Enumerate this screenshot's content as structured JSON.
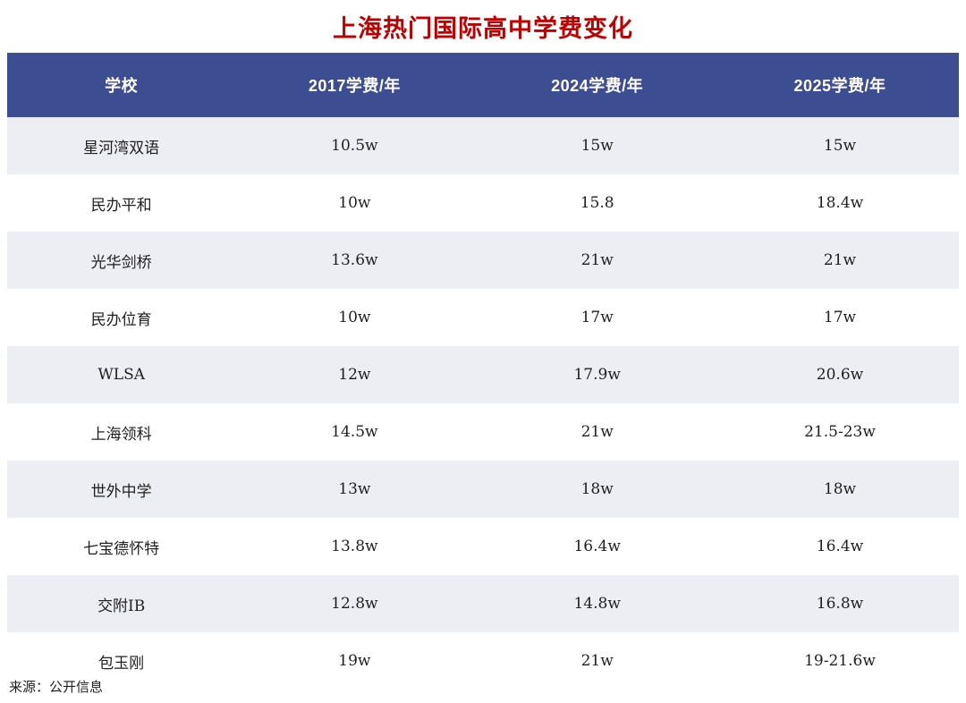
{
  "page": {
    "title": "上海热门国际高中学费变化",
    "source": "来源：公开信息"
  },
  "colors": {
    "title_text": "#c00000",
    "header_bg": "#3d4d91",
    "header_text": "#ffffff",
    "row_alt_bg": "#ededf4",
    "row_bg": "#ffffff",
    "body_text": "#1f1f1f"
  },
  "chart_data": {
    "type": "table",
    "title": "上海热门国际高中学费变化",
    "columns": [
      "学校",
      "2017学费/年",
      "2024学费/年",
      "2025学费/年"
    ],
    "rows": [
      [
        "星河湾双语",
        "10.5w",
        "15w",
        "15w"
      ],
      [
        "民办平和",
        "10w",
        "15.8",
        "18.4w"
      ],
      [
        "光华剑桥",
        "13.6w",
        "21w",
        "21w"
      ],
      [
        "民办位育",
        "10w",
        "17w",
        "17w"
      ],
      [
        "WLSA",
        "12w",
        "17.9w",
        "20.6w"
      ],
      [
        "上海领科",
        "14.5w",
        "21w",
        "21.5-23w"
      ],
      [
        "世外中学",
        "13w",
        "18w",
        "18w"
      ],
      [
        "七宝德怀特",
        "13.8w",
        "16.4w",
        "16.4w"
      ],
      [
        "交附IB",
        "12.8w",
        "14.8w",
        "16.8w"
      ],
      [
        "包玉刚",
        "19w",
        "21w",
        "19-21.6w"
      ]
    ],
    "source": "来源：公开信息"
  }
}
